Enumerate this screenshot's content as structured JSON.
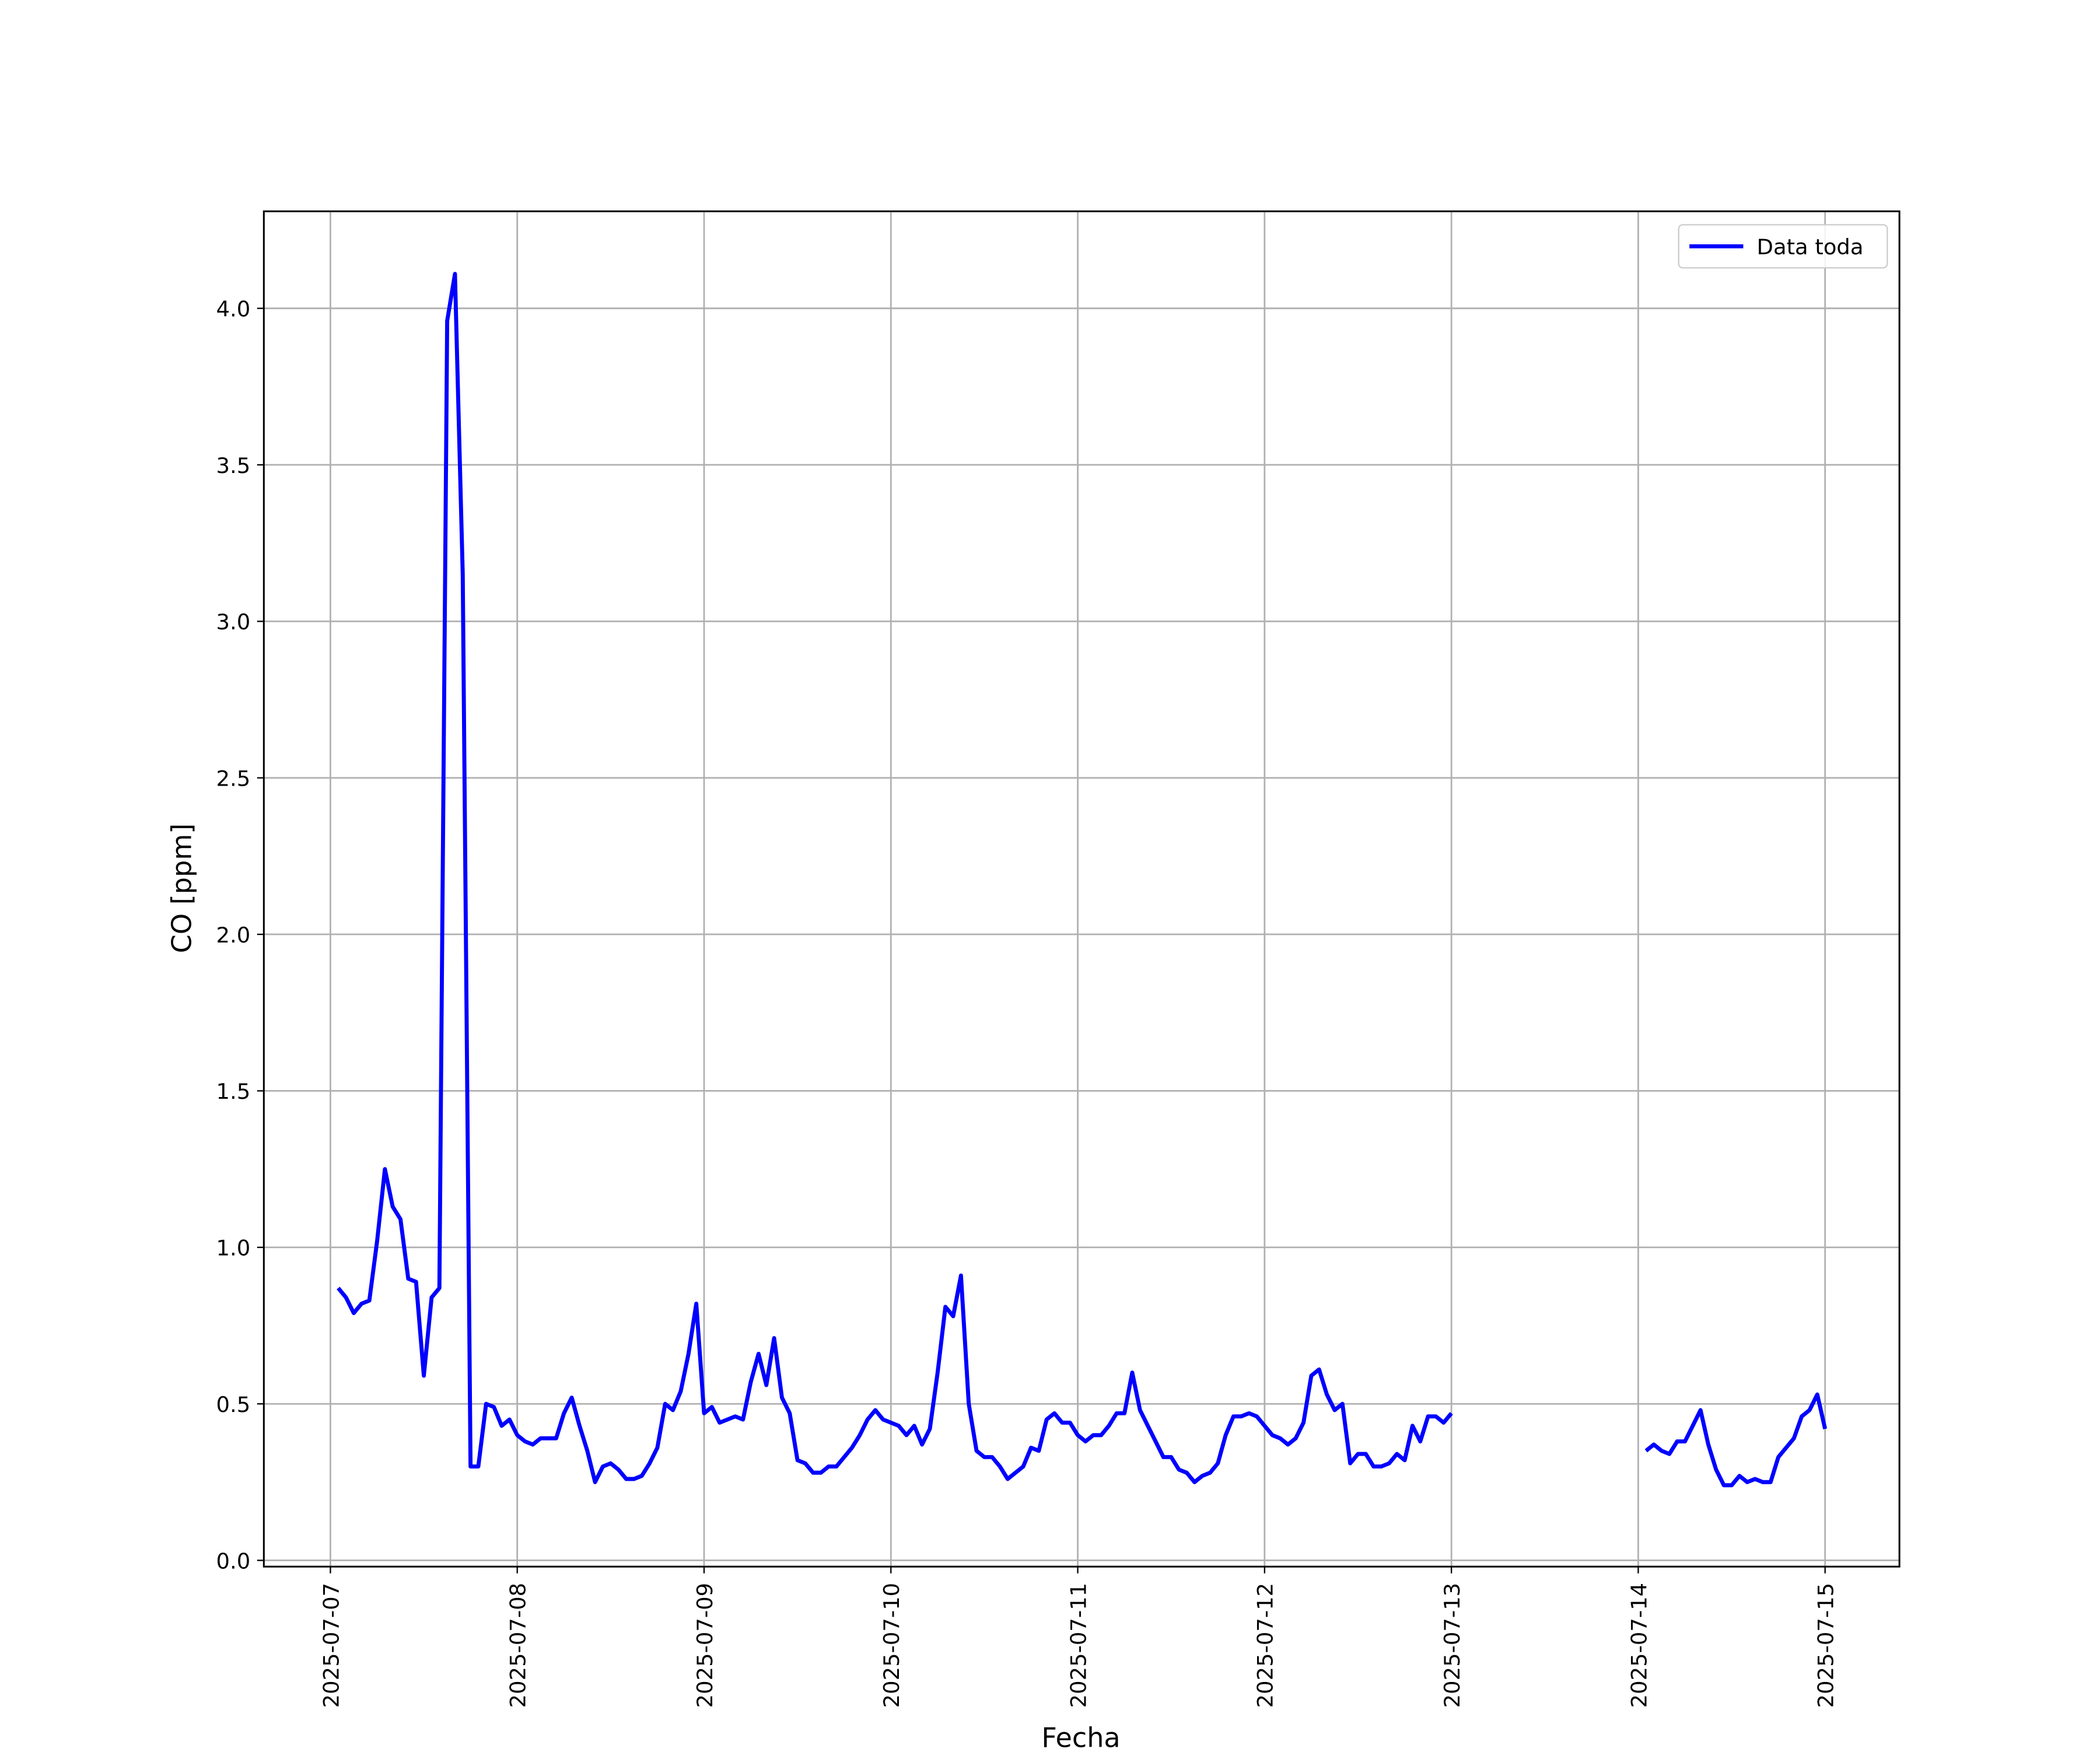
{
  "chart_data": {
    "type": "line",
    "x_label": "Fecha",
    "y_label": "CO [ppm]",
    "x": [
      "2025-07-07 01:00",
      "2025-07-07 02:00",
      "2025-07-07 03:00",
      "2025-07-07 04:00",
      "2025-07-07 05:00",
      "2025-07-07 06:00",
      "2025-07-07 07:00",
      "2025-07-07 08:00",
      "2025-07-07 09:00",
      "2025-07-07 10:00",
      "2025-07-07 11:00",
      "2025-07-07 12:00",
      "2025-07-07 13:00",
      "2025-07-07 14:00",
      "2025-07-07 15:00",
      "2025-07-07 16:00",
      "2025-07-07 17:00",
      "2025-07-07 18:00",
      "2025-07-07 19:00",
      "2025-07-07 20:00",
      "2025-07-07 21:00",
      "2025-07-07 22:00",
      "2025-07-07 23:00",
      "2025-07-08 00:00",
      "2025-07-08 01:00",
      "2025-07-08 02:00",
      "2025-07-08 03:00",
      "2025-07-08 04:00",
      "2025-07-08 05:00",
      "2025-07-08 06:00",
      "2025-07-08 07:00",
      "2025-07-08 08:00",
      "2025-07-08 09:00",
      "2025-07-08 10:00",
      "2025-07-08 11:00",
      "2025-07-08 12:00",
      "2025-07-08 13:00",
      "2025-07-08 14:00",
      "2025-07-08 15:00",
      "2025-07-08 16:00",
      "2025-07-08 17:00",
      "2025-07-08 18:00",
      "2025-07-08 19:00",
      "2025-07-08 20:00",
      "2025-07-08 21:00",
      "2025-07-08 22:00",
      "2025-07-08 23:00",
      "2025-07-09 00:00",
      "2025-07-09 01:00",
      "2025-07-09 02:00",
      "2025-07-09 03:00",
      "2025-07-09 04:00",
      "2025-07-09 05:00",
      "2025-07-09 06:00",
      "2025-07-09 07:00",
      "2025-07-09 08:00",
      "2025-07-09 09:00",
      "2025-07-09 10:00",
      "2025-07-09 11:00",
      "2025-07-09 12:00",
      "2025-07-09 13:00",
      "2025-07-09 14:00",
      "2025-07-09 15:00",
      "2025-07-09 16:00",
      "2025-07-09 17:00",
      "2025-07-09 18:00",
      "2025-07-09 19:00",
      "2025-07-09 20:00",
      "2025-07-09 21:00",
      "2025-07-09 22:00",
      "2025-07-09 23:00",
      "2025-07-10 00:00",
      "2025-07-10 01:00",
      "2025-07-10 02:00",
      "2025-07-10 03:00",
      "2025-07-10 04:00",
      "2025-07-10 05:00",
      "2025-07-10 06:00",
      "2025-07-10 07:00",
      "2025-07-10 08:00",
      "2025-07-10 09:00",
      "2025-07-10 10:00",
      "2025-07-10 11:00",
      "2025-07-10 12:00",
      "2025-07-10 13:00",
      "2025-07-10 14:00",
      "2025-07-10 15:00",
      "2025-07-10 16:00",
      "2025-07-10 17:00",
      "2025-07-10 18:00",
      "2025-07-10 19:00",
      "2025-07-10 20:00",
      "2025-07-10 21:00",
      "2025-07-10 22:00",
      "2025-07-10 23:00",
      "2025-07-11 00:00",
      "2025-07-11 01:00",
      "2025-07-11 02:00",
      "2025-07-11 03:00",
      "2025-07-11 04:00",
      "2025-07-11 05:00",
      "2025-07-11 06:00",
      "2025-07-11 07:00",
      "2025-07-11 08:00",
      "2025-07-11 09:00",
      "2025-07-11 10:00",
      "2025-07-11 11:00",
      "2025-07-11 12:00",
      "2025-07-11 13:00",
      "2025-07-11 14:00",
      "2025-07-11 15:00",
      "2025-07-11 16:00",
      "2025-07-11 17:00",
      "2025-07-11 18:00",
      "2025-07-11 19:00",
      "2025-07-11 20:00",
      "2025-07-11 21:00",
      "2025-07-11 22:00",
      "2025-07-11 23:00",
      "2025-07-12 00:00",
      "2025-07-12 01:00",
      "2025-07-12 02:00",
      "2025-07-12 03:00",
      "2025-07-12 04:00",
      "2025-07-12 05:00",
      "2025-07-12 06:00",
      "2025-07-12 07:00",
      "2025-07-12 08:00",
      "2025-07-12 09:00",
      "2025-07-12 10:00",
      "2025-07-12 11:00",
      "2025-07-12 12:00",
      "2025-07-12 13:00",
      "2025-07-12 14:00",
      "2025-07-12 15:00",
      "2025-07-12 16:00",
      "2025-07-12 17:00",
      "2025-07-12 18:00",
      "2025-07-12 19:00",
      "2025-07-12 20:00",
      "2025-07-12 21:00",
      "2025-07-12 22:00",
      "2025-07-12 23:00",
      "2025-07-13 00:00",
      "2025-07-13 01:00",
      "2025-07-14 01:00",
      "2025-07-14 02:00",
      "2025-07-14 03:00",
      "2025-07-14 04:00",
      "2025-07-14 05:00",
      "2025-07-14 06:00",
      "2025-07-14 07:00",
      "2025-07-14 08:00",
      "2025-07-14 09:00",
      "2025-07-14 10:00",
      "2025-07-14 11:00",
      "2025-07-14 12:00",
      "2025-07-14 13:00",
      "2025-07-14 14:00",
      "2025-07-14 15:00",
      "2025-07-14 16:00",
      "2025-07-14 17:00",
      "2025-07-14 18:00",
      "2025-07-14 19:00",
      "2025-07-14 20:00",
      "2025-07-14 21:00",
      "2025-07-14 22:00",
      "2025-07-14 23:00",
      "2025-07-15 00:00"
    ],
    "series": [
      {
        "name": "Data toda",
        "color": "#0000ff",
        "values": [
          0.87,
          0.84,
          0.79,
          0.82,
          0.83,
          1.02,
          1.25,
          1.13,
          1.09,
          0.9,
          0.89,
          0.59,
          0.84,
          0.87,
          3.96,
          4.11,
          3.15,
          0.3,
          0.3,
          0.5,
          0.49,
          0.43,
          0.45,
          0.4,
          0.38,
          0.37,
          0.39,
          0.39,
          0.39,
          0.47,
          0.52,
          0.43,
          0.35,
          0.25,
          0.3,
          0.31,
          0.29,
          0.26,
          0.26,
          0.27,
          0.31,
          0.36,
          0.5,
          0.48,
          0.54,
          0.66,
          0.82,
          0.47,
          0.49,
          0.44,
          0.45,
          0.46,
          0.45,
          0.57,
          0.66,
          0.56,
          0.71,
          0.52,
          0.47,
          0.32,
          0.31,
          0.28,
          0.28,
          0.3,
          0.3,
          0.33,
          0.36,
          0.4,
          0.45,
          0.48,
          0.45,
          0.44,
          0.43,
          0.4,
          0.43,
          0.37,
          0.42,
          0.6,
          0.81,
          0.78,
          0.91,
          0.5,
          0.35,
          0.33,
          0.33,
          0.3,
          0.26,
          0.28,
          0.3,
          0.36,
          0.35,
          0.45,
          0.47,
          0.44,
          0.44,
          0.4,
          0.38,
          0.4,
          0.4,
          0.43,
          0.47,
          0.47,
          0.6,
          0.48,
          0.43,
          0.38,
          0.33,
          0.33,
          0.29,
          0.28,
          0.25,
          0.27,
          0.28,
          0.31,
          0.4,
          0.46,
          0.46,
          0.47,
          0.46,
          0.43,
          0.4,
          0.39,
          0.37,
          0.39,
          0.44,
          0.59,
          0.61,
          0.53,
          0.48,
          0.5,
          0.31,
          0.34,
          0.34,
          0.3,
          0.3,
          0.31,
          0.34,
          0.32,
          0.43,
          0.38,
          0.46,
          0.46,
          0.44,
          0.47,
          null,
          0.35,
          0.37,
          0.35,
          0.34,
          0.38,
          0.38,
          0.43,
          0.48,
          0.37,
          0.29,
          0.24,
          0.24,
          0.27,
          0.25,
          0.26,
          0.25,
          0.25,
          0.33,
          0.36,
          0.39,
          0.46,
          0.48,
          0.53,
          0.42
        ]
      }
    ],
    "xlim": [
      "2025-07-06 15:27",
      "2025-07-15 09:33"
    ],
    "xticks": [
      "2025-07-07",
      "2025-07-08",
      "2025-07-09",
      "2025-07-10",
      "2025-07-11",
      "2025-07-12",
      "2025-07-13",
      "2025-07-14",
      "2025-07-15"
    ],
    "ylim": [
      -0.02,
      4.31
    ],
    "yticks": [
      {
        "value": 0,
        "label": "0.0"
      },
      0.5,
      {
        "value": 1,
        "label": "1.0"
      },
      1.5,
      {
        "value": 2,
        "label": "2.0"
      },
      2.5,
      {
        "value": 3,
        "label": "3.0"
      },
      3.5,
      {
        "value": 4,
        "label": "4.0"
      }
    ],
    "grid": true,
    "legend": "upper right"
  }
}
